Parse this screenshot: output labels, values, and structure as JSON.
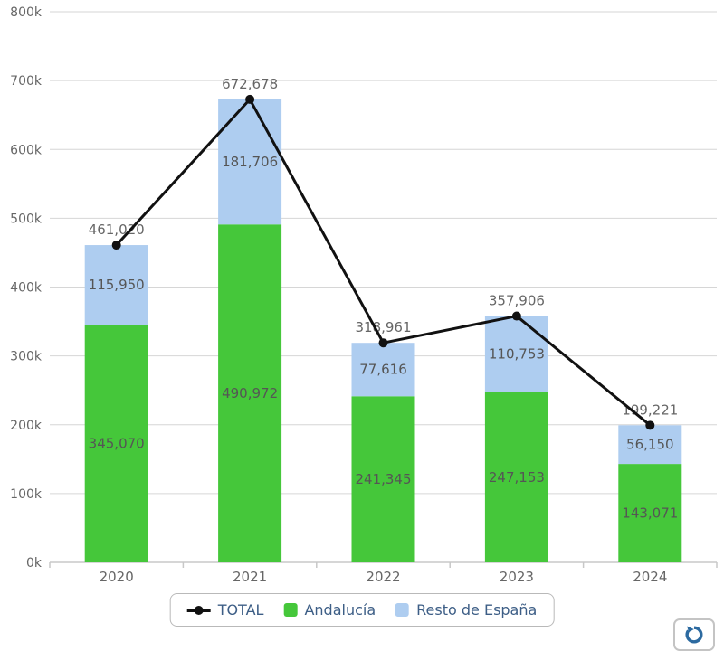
{
  "chart_data": {
    "type": "bar",
    "subtype": "stacked-column-with-line-overlay",
    "title": "",
    "xlabel": "",
    "ylabel": "",
    "categories": [
      "2020",
      "2021",
      "2022",
      "2023",
      "2024"
    ],
    "series": [
      {
        "name": "TOTAL",
        "render": "line",
        "color": "#111111",
        "values": [
          461020,
          672678,
          318961,
          357906,
          199221
        ],
        "labels": [
          "461,020",
          "672,678",
          "318,961",
          "357,906",
          "199,221"
        ]
      },
      {
        "name": "Andalucía",
        "render": "column",
        "color": "#45c73a",
        "values": [
          345070,
          490972,
          241345,
          247153,
          143071
        ],
        "labels": [
          "345,070",
          "490,972",
          "241,345",
          "247,153",
          "143,071"
        ]
      },
      {
        "name": "Resto de España",
        "render": "column",
        "color": "#aecdf0",
        "values": [
          115950,
          181706,
          77616,
          110753,
          56150
        ],
        "labels": [
          "115,950",
          "181,706",
          "77,616",
          "110,753",
          "56,150"
        ]
      }
    ],
    "yaxis": {
      "min": 0,
      "max": 800000,
      "step": 100000,
      "tick_labels": [
        "0k",
        "100k",
        "200k",
        "300k",
        "400k",
        "500k",
        "600k",
        "700k",
        "800k"
      ]
    },
    "grid": true,
    "legend_position": "bottom",
    "colors": {
      "gridline": "#d6d6d6",
      "axis_line": "#c8c8c8",
      "axis_text": "#666666",
      "data_label_text": "#555555",
      "total_label_text": "#666666",
      "legend_text": "#3d5e86"
    }
  },
  "legend": {
    "items": [
      {
        "label": "TOTAL",
        "marker": "line-dot"
      },
      {
        "label": "Andalucía",
        "marker": "square"
      },
      {
        "label": "Resto de España",
        "marker": "square"
      }
    ]
  },
  "controls": {
    "refresh": {
      "icon": "refresh-circular-arrow",
      "icon_color": "#2c6aa0"
    }
  }
}
